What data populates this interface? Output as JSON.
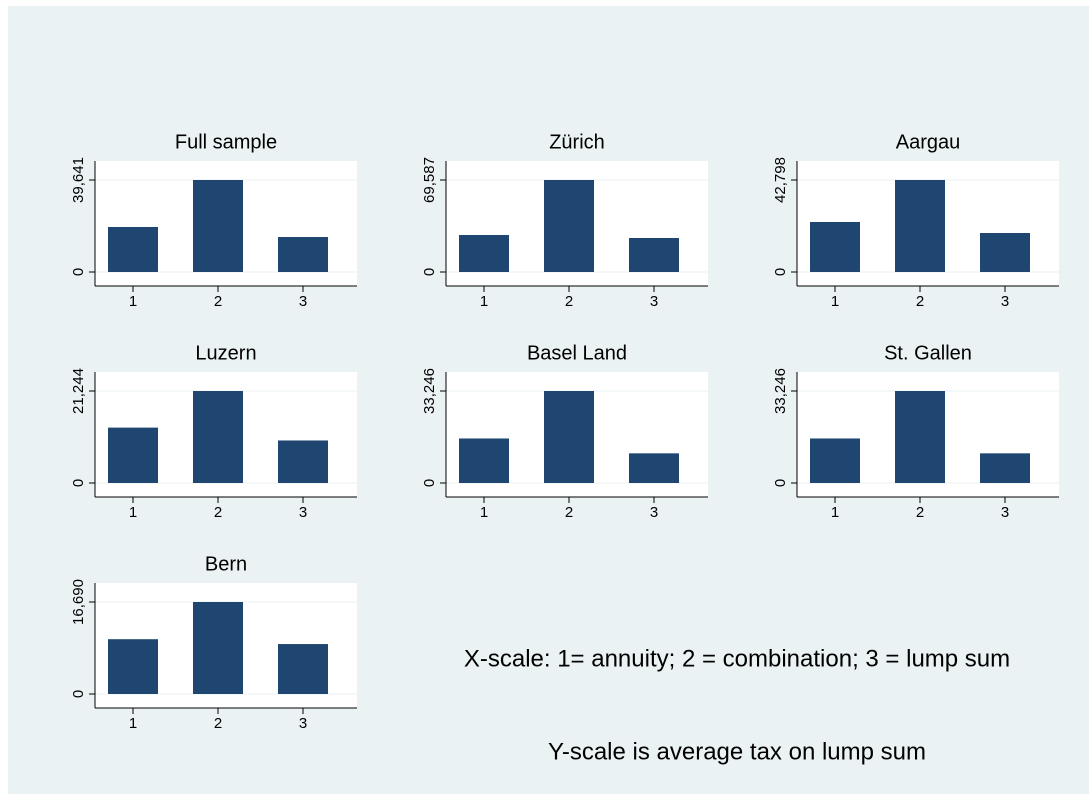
{
  "chart_data": [
    {
      "type": "bar",
      "title": "Full sample",
      "categories": [
        "1",
        "2",
        "3"
      ],
      "values": [
        19390,
        39641,
        15080
      ],
      "color": "#1e4670",
      "ylim": [
        0,
        39641
      ],
      "yticks": [
        0,
        {
          "value": 39641,
          "label": "39,641"
        }
      ],
      "grid": true
    },
    {
      "type": "bar",
      "title": "Zürich",
      "categories": [
        "1",
        "2",
        "3"
      ],
      "values": [
        27990,
        69587,
        25720
      ],
      "color": "#1e4670",
      "ylim": [
        0,
        69587
      ],
      "yticks": [
        0,
        {
          "value": 69587,
          "label": "69,587"
        }
      ],
      "grid": true
    },
    {
      "type": "bar",
      "title": "Aargau",
      "categories": [
        "1",
        "2",
        "3"
      ],
      "values": [
        23260,
        42798,
        18140
      ],
      "color": "#1e4670",
      "ylim": [
        0,
        42798
      ],
      "yticks": [
        0,
        {
          "value": 42798,
          "label": "42,798"
        }
      ],
      "grid": true
    },
    {
      "type": "bar",
      "title": "Luzern",
      "categories": [
        "1",
        "2",
        "3"
      ],
      "values": [
        12790,
        21244,
        9820
      ],
      "color": "#1e4670",
      "ylim": [
        0,
        21244
      ],
      "yticks": [
        0,
        {
          "value": 21244,
          "label": "21,244"
        }
      ],
      "grid": true
    },
    {
      "type": "bar",
      "title": "Basel Land",
      "categories": [
        "1",
        "2",
        "3"
      ],
      "values": [
        16090,
        33246,
        10720
      ],
      "color": "#1e4670",
      "ylim": [
        0,
        33246
      ],
      "yticks": [
        0,
        {
          "value": 33246,
          "label": "33,246"
        }
      ],
      "grid": true
    },
    {
      "type": "bar",
      "title": "St. Gallen",
      "categories": [
        "1",
        "2",
        "3"
      ],
      "values": [
        16090,
        33246,
        10720
      ],
      "color": "#1e4670",
      "ylim": [
        0,
        33246
      ],
      "yticks": [
        0,
        {
          "value": 33246,
          "label": "33,246"
        }
      ],
      "grid": true
    },
    {
      "type": "bar",
      "title": "Bern",
      "categories": [
        "1",
        "2",
        "3"
      ],
      "values": [
        9940,
        16690,
        9060
      ],
      "color": "#1e4670",
      "ylim": [
        0,
        16690
      ],
      "yticks": [
        0,
        {
          "value": 16690,
          "label": "16,690"
        }
      ],
      "grid": true
    }
  ],
  "notes": [
    "X-scale: 1= annuity; 2 = combination; 3 = lump sum",
    "Y-scale is average tax on lump sum"
  ]
}
